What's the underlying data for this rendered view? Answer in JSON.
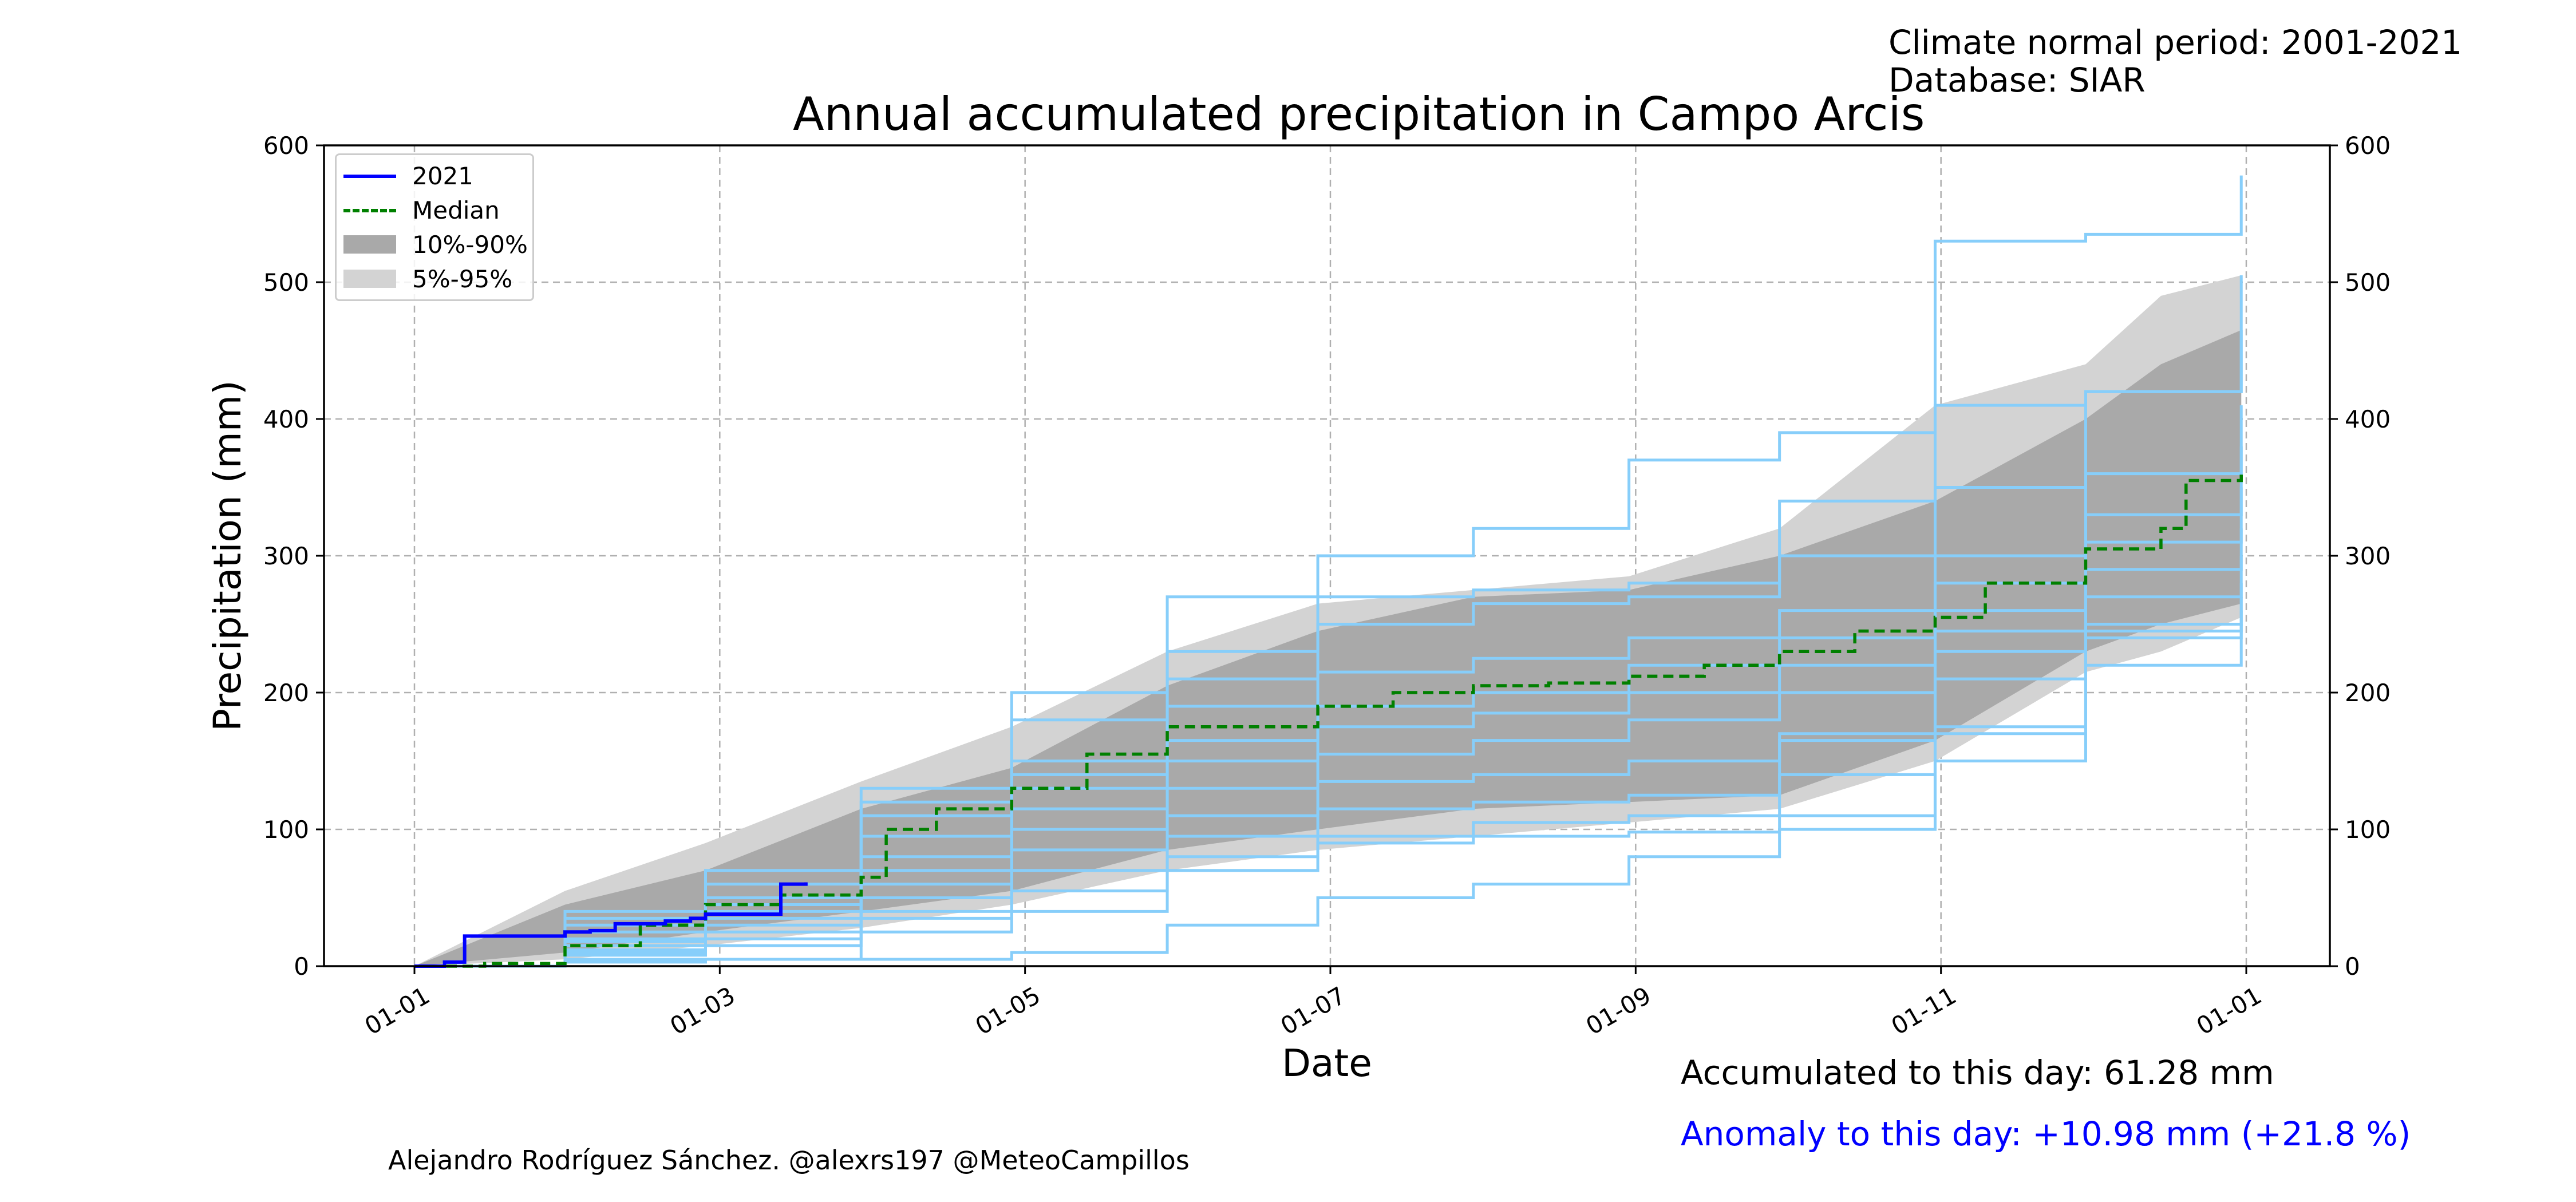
{
  "header": {
    "climate_period": "Climate normal period: 2001-2021",
    "database": "Database: SIAR"
  },
  "footer": {
    "accumulated": "Accumulated to this day: 61.28 mm",
    "anomaly": "Anomaly to this day: +10.98 mm (+21.8 %)",
    "credit": "Alejandro Rodríguez Sánchez. @alexrs197 @MeteoCampillos"
  },
  "colors": {
    "current_year": "#0000ff",
    "median": "#008000",
    "band_10_90": "#a9a9a9",
    "band_5_95": "#d3d3d3",
    "past_years": "#87cefa",
    "anomaly_text": "#0000ff"
  },
  "chart_data": {
    "type": "line",
    "title": "Annual accumulated precipitation in Campo Arcis",
    "xlabel": "Date",
    "ylabel": "Precipitation (mm)",
    "ylim": [
      0,
      600
    ],
    "yticks": [
      "0",
      "100",
      "200",
      "300",
      "400",
      "500",
      "600"
    ],
    "xticks": [
      "01-01",
      "01-03",
      "01-05",
      "01-07",
      "01-09",
      "01-11",
      "01-01"
    ],
    "grid": true,
    "legend_position": "top-left",
    "legend": [
      {
        "label": "2021",
        "style": "solid",
        "color": "#0000ff"
      },
      {
        "label": "Median",
        "style": "dashed",
        "color": "#008000"
      },
      {
        "label": "10%-90%",
        "style": "band",
        "color": "#a9a9a9"
      },
      {
        "label": "5%-95%",
        "style": "band",
        "color": "#d3d3d3"
      }
    ],
    "current_year": {
      "name": "2021",
      "x": [
        "01-01",
        "01-07",
        "01-11",
        "01-21",
        "01-31",
        "02-05",
        "02-10",
        "02-20",
        "02-25",
        "02-28",
        "03-05",
        "03-10",
        "03-15",
        "03-20"
      ],
      "y": [
        0,
        3,
        22,
        22,
        25,
        26,
        31,
        33,
        35,
        38,
        38,
        38,
        60,
        61.28
      ]
    },
    "median": {
      "name": "Median",
      "x": [
        "01-01",
        "01-15",
        "01-31",
        "02-15",
        "02-28",
        "03-15",
        "03-31",
        "04-05",
        "04-15",
        "04-30",
        "05-15",
        "05-31",
        "06-30",
        "07-15",
        "07-31",
        "08-15",
        "08-31",
        "09-15",
        "09-30",
        "10-15",
        "10-31",
        "11-10",
        "11-30",
        "12-15",
        "12-20",
        "12-31"
      ],
      "y": [
        0,
        2,
        15,
        30,
        45,
        52,
        65,
        100,
        115,
        130,
        155,
        175,
        190,
        200,
        205,
        207,
        212,
        220,
        230,
        245,
        255,
        280,
        305,
        320,
        355,
        362
      ]
    },
    "band_10_90": {
      "x": [
        "01-01",
        "01-31",
        "02-28",
        "03-31",
        "04-30",
        "05-31",
        "06-30",
        "07-31",
        "08-31",
        "09-30",
        "10-31",
        "11-30",
        "12-15",
        "12-31"
      ],
      "lower": [
        0,
        10,
        25,
        40,
        55,
        85,
        100,
        115,
        120,
        125,
        165,
        230,
        250,
        265
      ],
      "upper": [
        0,
        45,
        70,
        115,
        145,
        205,
        245,
        270,
        275,
        300,
        340,
        400,
        440,
        465
      ]
    },
    "band_5_95": {
      "x": [
        "01-01",
        "01-31",
        "02-28",
        "03-31",
        "04-30",
        "05-31",
        "06-30",
        "07-31",
        "08-31",
        "09-30",
        "10-31",
        "11-30",
        "12-15",
        "12-31"
      ],
      "lower": [
        0,
        5,
        15,
        28,
        45,
        70,
        85,
        95,
        105,
        115,
        150,
        215,
        230,
        255
      ],
      "upper": [
        0,
        55,
        90,
        135,
        175,
        230,
        265,
        275,
        285,
        320,
        410,
        440,
        490,
        505
      ]
    },
    "past_years": [
      {
        "x": [
          "01-01",
          "01-31",
          "02-28",
          "03-31",
          "04-30",
          "05-31",
          "06-30",
          "07-31",
          "08-31",
          "09-30",
          "10-31",
          "11-30",
          "12-31"
        ],
        "y": [
          0,
          35,
          70,
          120,
          200,
          270,
          300,
          320,
          370,
          390,
          530,
          535,
          578
        ]
      },
      {
        "x": [
          "01-01",
          "01-31",
          "02-28",
          "03-31",
          "04-30",
          "05-31",
          "06-30",
          "07-31",
          "08-31",
          "09-30",
          "10-31",
          "11-30",
          "12-31"
        ],
        "y": [
          0,
          40,
          60,
          130,
          180,
          230,
          270,
          275,
          280,
          340,
          410,
          420,
          505
        ]
      },
      {
        "x": [
          "01-01",
          "01-31",
          "02-28",
          "03-31",
          "04-30",
          "05-31",
          "06-30",
          "07-31",
          "08-31",
          "09-30",
          "10-31",
          "11-30",
          "12-31"
        ],
        "y": [
          0,
          30,
          50,
          110,
          150,
          210,
          250,
          265,
          270,
          300,
          350,
          420,
          465
        ]
      },
      {
        "x": [
          "01-01",
          "01-31",
          "02-28",
          "03-31",
          "04-30",
          "05-31",
          "06-30",
          "07-31",
          "08-31",
          "09-30",
          "10-31",
          "11-30",
          "12-31"
        ],
        "y": [
          0,
          25,
          45,
          95,
          140,
          190,
          215,
          225,
          240,
          260,
          300,
          360,
          410
        ]
      },
      {
        "x": [
          "01-01",
          "01-31",
          "02-28",
          "03-31",
          "04-30",
          "05-31",
          "06-30",
          "07-31",
          "08-31",
          "09-30",
          "10-31",
          "11-30",
          "12-31"
        ],
        "y": [
          0,
          20,
          40,
          80,
          130,
          165,
          190,
          200,
          220,
          240,
          280,
          330,
          380
        ]
      },
      {
        "x": [
          "01-01",
          "01-31",
          "02-28",
          "03-31",
          "04-30",
          "05-31",
          "06-30",
          "07-31",
          "08-31",
          "09-30",
          "10-31",
          "11-30",
          "12-31"
        ],
        "y": [
          0,
          18,
          35,
          70,
          115,
          150,
          175,
          185,
          200,
          220,
          260,
          310,
          350
        ]
      },
      {
        "x": [
          "01-01",
          "01-31",
          "02-28",
          "03-31",
          "04-30",
          "05-31",
          "06-30",
          "07-31",
          "08-31",
          "09-30",
          "10-31",
          "11-30",
          "12-31"
        ],
        "y": [
          0,
          15,
          30,
          60,
          100,
          130,
          155,
          165,
          180,
          200,
          245,
          290,
          320
        ]
      },
      {
        "x": [
          "01-01",
          "01-31",
          "02-28",
          "03-31",
          "04-30",
          "05-31",
          "06-30",
          "07-31",
          "08-31",
          "09-30",
          "10-31",
          "11-30",
          "12-31"
        ],
        "y": [
          0,
          12,
          25,
          50,
          85,
          110,
          135,
          140,
          150,
          170,
          230,
          270,
          300
        ]
      },
      {
        "x": [
          "01-01",
          "01-31",
          "02-28",
          "03-31",
          "04-30",
          "05-31",
          "06-30",
          "07-31",
          "08-31",
          "09-30",
          "10-31",
          "11-30",
          "12-31"
        ],
        "y": [
          0,
          10,
          20,
          40,
          70,
          95,
          115,
          120,
          125,
          165,
          210,
          250,
          280
        ]
      },
      {
        "x": [
          "01-01",
          "01-31",
          "02-28",
          "03-31",
          "04-30",
          "05-31",
          "06-30",
          "07-31",
          "08-31",
          "09-30",
          "10-31",
          "11-30",
          "12-31"
        ],
        "y": [
          0,
          8,
          15,
          35,
          55,
          80,
          95,
          105,
          110,
          140,
          175,
          240,
          270
        ]
      },
      {
        "x": [
          "01-01",
          "01-31",
          "02-28",
          "03-31",
          "04-30",
          "05-31",
          "06-30",
          "07-31",
          "08-31",
          "09-30",
          "10-31",
          "11-30",
          "12-31"
        ],
        "y": [
          0,
          5,
          5,
          25,
          40,
          70,
          90,
          95,
          98,
          100,
          170,
          245,
          250
        ]
      },
      {
        "x": [
          "01-01",
          "01-31",
          "02-28",
          "03-31",
          "04-30",
          "05-31",
          "06-30",
          "07-31",
          "08-31",
          "09-30",
          "10-31",
          "11-30",
          "12-31"
        ],
        "y": [
          0,
          3,
          5,
          5,
          10,
          30,
          50,
          60,
          80,
          110,
          150,
          220,
          260
        ]
      }
    ]
  }
}
